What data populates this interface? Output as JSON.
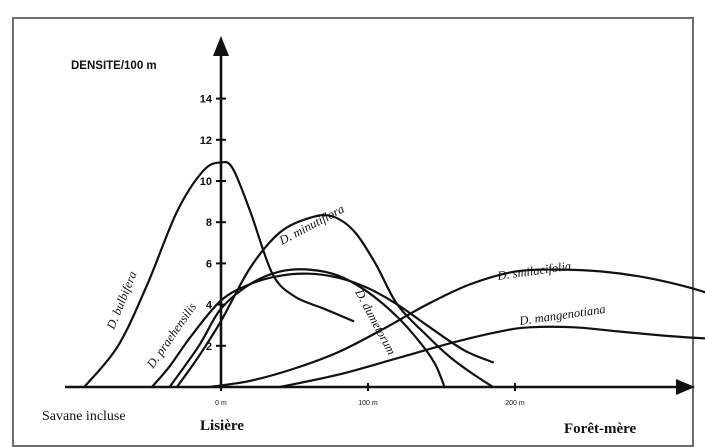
{
  "chart_data": {
    "type": "line",
    "ylabel": "DENSITE/100 m",
    "xlabel": "",
    "ylim": [
      0,
      15
    ],
    "yticks": [
      2,
      4,
      6,
      8,
      10,
      12,
      14
    ],
    "xticks": [
      {
        "value": 0,
        "label": "0 m"
      },
      {
        "value": 100,
        "label": "100 m"
      },
      {
        "value": 200,
        "label": "200 m"
      }
    ],
    "x_unit": "m",
    "zones": {
      "left": "Savane incluse",
      "center": "Lisière",
      "right": "Forêt-mère"
    },
    "grid": false,
    "legend": "none",
    "series": [
      {
        "name": "D. bulbifera",
        "x": [
          -93,
          -70,
          -50,
          -30,
          -12,
          0,
          8,
          20,
          35,
          50,
          70,
          90
        ],
        "y": [
          0,
          2.0,
          5.0,
          8.5,
          10.5,
          10.9,
          10.6,
          8.5,
          5.5,
          4.4,
          3.8,
          3.2
        ]
      },
      {
        "name": "D. praehensilis",
        "x": [
          -47,
          -35,
          -20,
          0,
          20,
          40,
          60,
          80,
          100,
          120,
          140,
          165,
          185
        ],
        "y": [
          0,
          1.0,
          2.5,
          4.2,
          5.0,
          5.4,
          5.5,
          5.3,
          4.8,
          4.0,
          3.0,
          1.8,
          1.2
        ]
      },
      {
        "name": "D. minutiflora",
        "x": [
          -30,
          -15,
          0,
          20,
          40,
          60,
          75,
          90,
          105,
          120,
          140,
          155,
          170,
          185
        ],
        "y": [
          0,
          1.5,
          3.2,
          5.8,
          7.5,
          8.2,
          8.3,
          7.6,
          6.0,
          4.0,
          2.5,
          1.5,
          0.7,
          0
        ]
      },
      {
        "name": "D. dumetorum",
        "x": [
          -35,
          -15,
          0,
          20,
          40,
          60,
          80,
          100,
          120,
          135,
          145,
          150,
          152
        ],
        "y": [
          0,
          2.0,
          3.8,
          5.0,
          5.6,
          5.7,
          5.4,
          4.6,
          3.4,
          2.2,
          1.2,
          0.4,
          0
        ]
      },
      {
        "name": "D. smilacifolia",
        "x": [
          -8,
          20,
          50,
          80,
          110,
          140,
          170,
          200,
          230,
          260,
          290,
          320,
          350
        ],
        "y": [
          0,
          0.3,
          0.9,
          1.7,
          2.8,
          4.0,
          5.0,
          5.6,
          5.7,
          5.6,
          5.3,
          4.8,
          4.1
        ]
      },
      {
        "name": "D. mangenotiana",
        "x": [
          40,
          80,
          120,
          160,
          190,
          210,
          240,
          270,
          300,
          320,
          345
        ],
        "y": [
          0,
          0.6,
          1.4,
          2.2,
          2.7,
          2.9,
          2.9,
          2.7,
          2.5,
          2.4,
          2.3
        ]
      }
    ]
  }
}
